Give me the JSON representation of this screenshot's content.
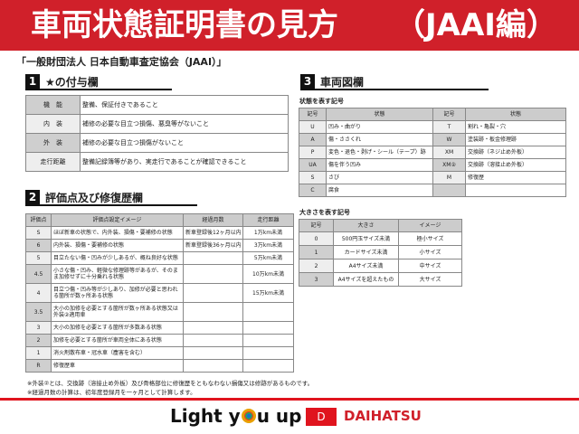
{
  "header": {
    "title": "車両状態証明書の見方",
    "suffix": "（JAAI編）"
  },
  "subtitle": "「一般財団法人 日本自動車査定協会（JAAI）」",
  "section1": {
    "num": "1",
    "title": "★の付与欄",
    "rows": [
      [
        "機　能",
        "整備、保証付きであること"
      ],
      [
        "内　装",
        "補修の必要な目立つ損傷、悪臭等がないこと"
      ],
      [
        "外　装",
        "補修の必要な目立つ損傷がないこと"
      ],
      [
        "走行距離",
        "整備記録簿等があり、実走行であることが確認できること"
      ]
    ]
  },
  "section2": {
    "num": "2",
    "title": "評価点及び修復歴欄",
    "headers": [
      "評価点",
      "評価点設定イメージ",
      "経過月数",
      "走行距離"
    ],
    "rows": [
      [
        "S",
        "ほぼ新車の状態で、内外装、損傷・要補修の状態",
        "新車登録後12ヶ月以内",
        "1万km未満"
      ],
      [
        "6",
        "内外装、損傷・要補修の状態",
        "新車登録後36ヶ月以内",
        "3万km未満"
      ],
      [
        "5",
        "目立たない傷・凹みが少しあるが、概ね良好な状態",
        "",
        "5万km未満"
      ],
      [
        "4.5",
        "小さな傷・凹み、軽微な修理跡等があるが、そのまま加修せずに十分乗れる状態",
        "",
        "10万km未満"
      ],
      [
        "4",
        "目立つ傷・凹み等が少しあり、加修が必要と思われる箇所が数ヶ所ある状態",
        "",
        "15万km未満"
      ],
      [
        "3.5",
        "大小の加修を必要とする箇所が数ヶ所ある状態又は外装②適用車",
        "",
        ""
      ],
      [
        "3",
        "大小の加修を必要とする箇所が多数ある状態",
        "",
        ""
      ],
      [
        "2",
        "加修を必要とする箇所が車両全体にある状態",
        "",
        ""
      ],
      [
        "1",
        "消火剤散布車・冠水車（塵害を含む）",
        "",
        ""
      ],
      [
        "R",
        "修復歴車",
        "",
        ""
      ]
    ]
  },
  "notes": [
    "※外装②とは、交換跡（溶接止め外板）及び骨格部位に修復歴をともなわない損傷又は修跡があるものです。",
    "※経過月数の計算は、初年度登録月を一ヶ月として計算します。"
  ],
  "section3": {
    "num": "3",
    "title": "車両図欄",
    "state_caption": "状態を表す記号",
    "state_headers": [
      "記号",
      "状態",
      "記号",
      "状態"
    ],
    "state_rows": [
      [
        "U",
        "凹み・曲がり",
        "T",
        "割れ・亀裂・穴"
      ],
      [
        "A",
        "傷・ささくれ",
        "W",
        "塗装跡・板金修理跡"
      ],
      [
        "P",
        "変色・退色・剥げ・シール（テープ）跡",
        "XM",
        "交換跡（ネジ止め外板）"
      ],
      [
        "UA",
        "傷を伴う凹み",
        "XM②",
        "交換跡（溶接止め外板）"
      ],
      [
        "S",
        "さび",
        "M",
        "修復歴"
      ],
      [
        "C",
        "腐食",
        "",
        ""
      ]
    ],
    "size_caption": "大きさを表す記号",
    "size_headers": [
      "記号",
      "大きさ",
      "イメージ"
    ],
    "size_rows": [
      [
        "0",
        "500円玉サイズ未満",
        "極小サイズ"
      ],
      [
        "1",
        "カードサイズ未満",
        "小サイズ"
      ],
      [
        "2",
        "A4サイズ未満",
        "中サイズ"
      ],
      [
        "3",
        "A4サイズを超えたもの",
        "大サイズ"
      ]
    ]
  },
  "footer": {
    "slogan_a": "Light y",
    "slogan_b": "u up",
    "brand": "DAIHATSU"
  },
  "colors": {
    "brand_red": "#d0202a",
    "label_grey": "#cfcfcf"
  }
}
